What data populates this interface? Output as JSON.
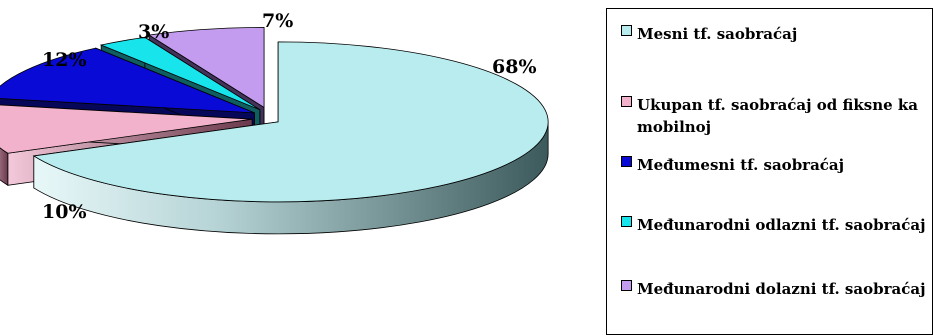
{
  "chart_data": {
    "type": "pie",
    "style": "3d-exploded",
    "title": "",
    "slices": [
      {
        "label": "Mesni tf. saobraćaj",
        "value": 68,
        "value_label": "68%",
        "color": "#b8ecee"
      },
      {
        "label": "Ukupan tf. saobraćaj od fiksne ka mobilnoj",
        "value": 10,
        "value_label": "10%",
        "color": "#f2b2cb"
      },
      {
        "label": "Međumesni tf. saobraćaj",
        "value": 12,
        "value_label": "12%",
        "color": "#0a0ad6"
      },
      {
        "label": "Međunarodni odlazni tf. saobraćaj",
        "value": 3,
        "value_label": "3%",
        "color": "#18e4ec"
      },
      {
        "label": "Međunarodni dolazni tf. saobraćaj",
        "value": 7,
        "value_label": "7%",
        "color": "#c39bef"
      }
    ],
    "legend_position": "right"
  }
}
